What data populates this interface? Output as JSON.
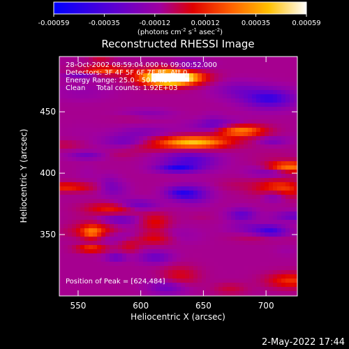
{
  "chart_data": {
    "type": "heatmap",
    "title": "Reconstructed RHESSI Image",
    "xlabel": "Heliocentric X (arcsec)",
    "ylabel": "Heliocentric Y (arcsec)",
    "xlim": [
      535,
      725
    ],
    "ylim": [
      300,
      495
    ],
    "x_ticks": [
      "550",
      "600",
      "650",
      "700"
    ],
    "x_tick_values": [
      550,
      600,
      650,
      700
    ],
    "y_ticks": [
      "350",
      "400",
      "450"
    ],
    "y_tick_values": [
      350,
      400,
      450
    ],
    "colorbar": {
      "ticks": [
        "-0.00059",
        "-0.00035",
        "-0.00012",
        "0.00012",
        "0.00035",
        "0.00059"
      ],
      "unit_label_parts": [
        "(photons cm",
        "-2",
        " s",
        "-1",
        " asec",
        "-2",
        ")"
      ],
      "range": [
        -0.00059,
        0.00059
      ],
      "colors": [
        "#0000ff",
        "#6000d0",
        "#a000a0",
        "#e00000",
        "#ff6000",
        "#ffc000",
        "#ffffff"
      ]
    },
    "annotations": [
      "28-Oct-2002 08:59:04.000 to 09:00:52.000",
      "Detectors: 3F 4F 5F 6F 7F 8F, Att 0",
      "Energy Range: 25.0 - 50.0 keV",
      "Clean     Total counts: 1.92E+03"
    ],
    "peak_label": "Position of Peak = [624,484]",
    "grid": false
  },
  "footer_timestamp": "2-May-2022 17:44"
}
